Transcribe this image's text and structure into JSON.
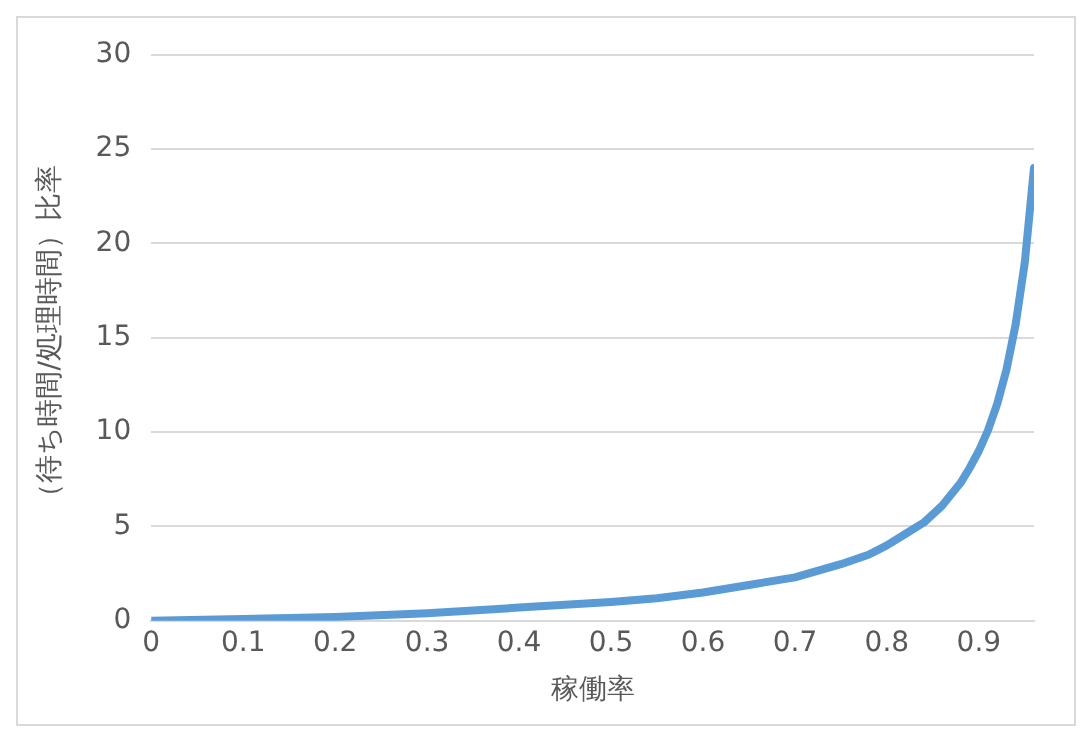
{
  "chart_data": {
    "type": "line",
    "xlabel": "稼働率",
    "ylabel": "（待ち時間/処理時間）比率",
    "x": [
      0,
      0.1,
      0.2,
      0.3,
      0.4,
      0.5,
      0.55,
      0.6,
      0.65,
      0.7,
      0.75,
      0.78,
      0.8,
      0.82,
      0.84,
      0.86,
      0.88,
      0.89,
      0.9,
      0.91,
      0.92,
      0.93,
      0.94,
      0.95,
      0.96
    ],
    "series": [
      {
        "color": "#5b9bd5",
        "values": [
          0,
          0.1,
          0.2,
          0.4,
          0.7,
          1,
          1.2,
          1.5,
          1.9,
          2.3,
          3,
          3.5,
          4,
          4.6,
          5.2,
          6.1,
          7.3,
          8.1,
          9,
          10.1,
          11.5,
          13.3,
          15.7,
          19,
          24
        ]
      }
    ],
    "xlim": [
      0,
      0.96
    ],
    "xticks": [
      0,
      0.1,
      0.2,
      0.3,
      0.4,
      0.5,
      0.6,
      0.7,
      0.8,
      0.9
    ],
    "ylim": [
      0,
      30
    ],
    "yticks": [
      0,
      5,
      10,
      15,
      20,
      25,
      30
    ],
    "grid": "y",
    "legend": false,
    "marker": "none",
    "line_style": "solid"
  }
}
